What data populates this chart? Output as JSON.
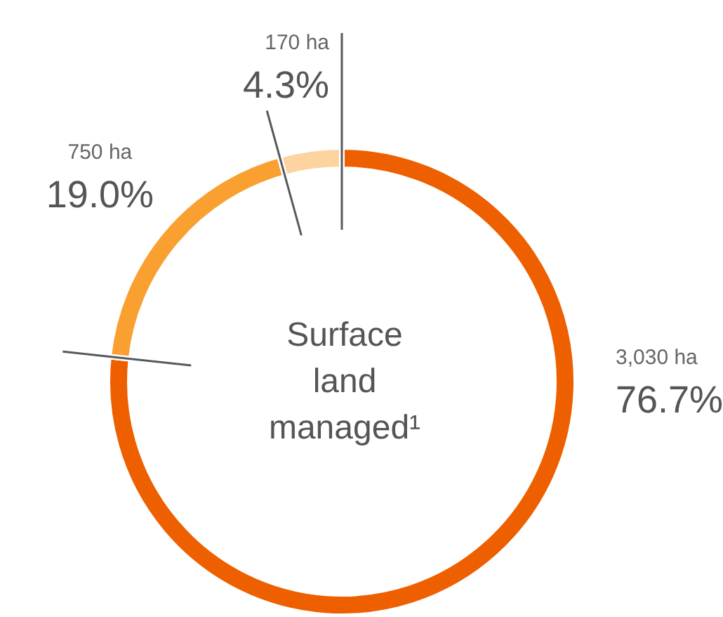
{
  "chart_data": {
    "type": "donut",
    "title": "Surface land managed¹",
    "categories": [
      "3,030 ha",
      "750 ha",
      "170 ha"
    ],
    "values": [
      76.7,
      19.0,
      4.3
    ],
    "value_labels": [
      "76.7%",
      "19.0%",
      "4.3%"
    ],
    "colors": [
      "#ee5f00",
      "#f9a030",
      "#fdd4a0"
    ]
  }
}
